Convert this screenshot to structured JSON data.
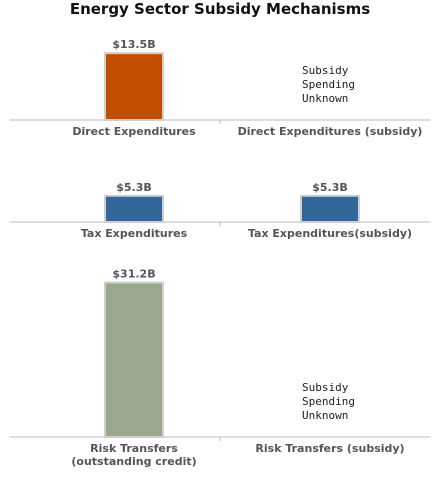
{
  "title": "Energy Sector Subsidy Mechanisms",
  "chart_data": {
    "type": "bar",
    "title": "Energy Sector Subsidy Mechanisms",
    "value_unit": "$B",
    "panels": [
      {
        "name": "direct",
        "bars": [
          {
            "category": "Direct Expenditures",
            "value": 13.5,
            "label": "$13.5B",
            "color": "#c24e00"
          },
          {
            "category": "Direct Expenditures (subsidy)",
            "value": null,
            "note": [
              "Subsidy",
              "Spending",
              "Unknown"
            ]
          }
        ]
      },
      {
        "name": "tax",
        "bars": [
          {
            "category": "Tax Expenditures",
            "value": 5.3,
            "label": "$5.3B",
            "color": "#336699"
          },
          {
            "category": "Tax Expenditures(subsidy)",
            "value": 5.3,
            "label": "$5.3B",
            "color": "#336699"
          }
        ]
      },
      {
        "name": "risk",
        "bars": [
          {
            "category": "Risk Transfers\n(outstanding credit)",
            "value": 31.2,
            "label": "$31.2B",
            "color": "#9ba88d"
          },
          {
            "category": "Risk Transfers (subsidy)",
            "value": null,
            "note": [
              "Subsidy",
              "Spending",
              "Unknown"
            ]
          }
        ]
      }
    ]
  }
}
